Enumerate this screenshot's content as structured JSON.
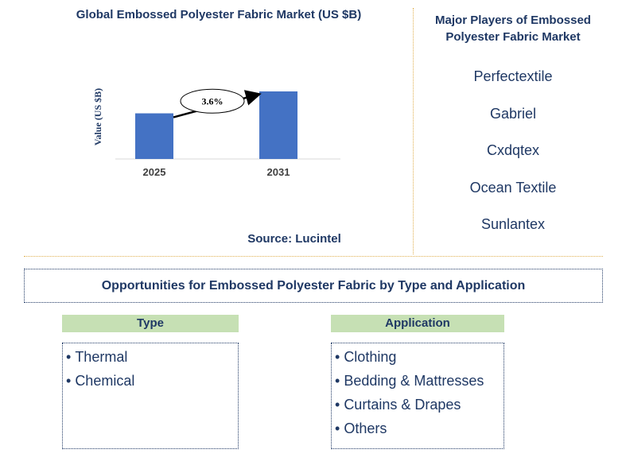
{
  "chart_data": {
    "type": "bar",
    "title": "Global Embossed Polyester Fabric Market (US $B)",
    "ylabel": "Value (US $B)",
    "categories": [
      "2025",
      "2031"
    ],
    "values": [
      1.0,
      1.48
    ],
    "annotation": "3.6%",
    "color": "#4472c4",
    "grid": false
  },
  "source": "Source: Lucintel",
  "players": {
    "title": "Major Players of Embossed Polyester Fabric Market",
    "items": [
      "Perfectextile",
      "Gabriel",
      "Cxdqtex",
      "Ocean Textile",
      "Sunlantex"
    ]
  },
  "opportunities": {
    "title": "Opportunities for Embossed Polyester Fabric by Type and Application",
    "type": {
      "header": "Type",
      "items": [
        "Thermal",
        "Chemical"
      ]
    },
    "application": {
      "header": "Application",
      "items": [
        "Clothing",
        "Bedding & Mattresses",
        "Curtains & Drapes",
        "Others"
      ]
    }
  }
}
